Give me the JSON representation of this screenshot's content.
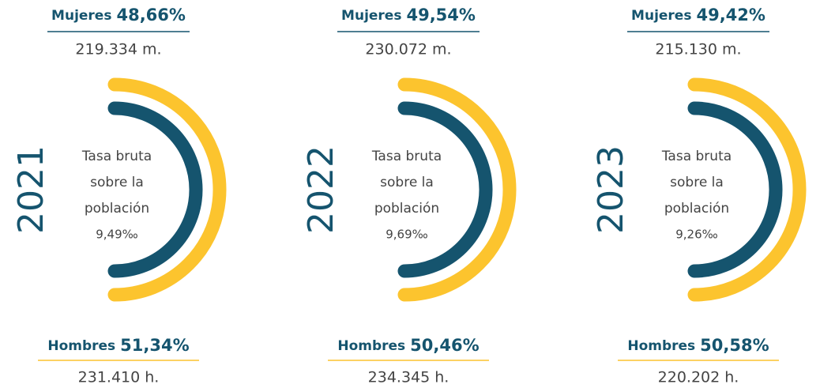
{
  "panels": [
    {
      "year": "2021",
      "women_label": "Mujeres",
      "women_pct": "48,66%",
      "women_count": "219.334 m.",
      "center_lines": [
        "Tasa bruta",
        "sobre la",
        "población",
        "9,49‰"
      ],
      "men_label": "Hombres",
      "men_pct": "51,34%",
      "men_count": "231.410 h."
    },
    {
      "year": "2022",
      "women_label": "Mujeres",
      "women_pct": "49,54%",
      "women_count": "230.072 m.",
      "center_lines": [
        "Tasa bruta",
        "sobre la",
        "población",
        "9,69‰"
      ],
      "men_label": "Hombres",
      "men_pct": "50,46%",
      "men_count": "234.345 h."
    },
    {
      "year": "2023",
      "women_label": "Mujeres",
      "women_pct": "49,42%",
      "women_count": "215.130 m.",
      "center_lines": [
        "Tasa bruta",
        "sobre la",
        "población",
        "9,26‰"
      ],
      "men_label": "Hombres",
      "men_pct": "50,58%",
      "men_count": "220.202 h."
    }
  ]
}
